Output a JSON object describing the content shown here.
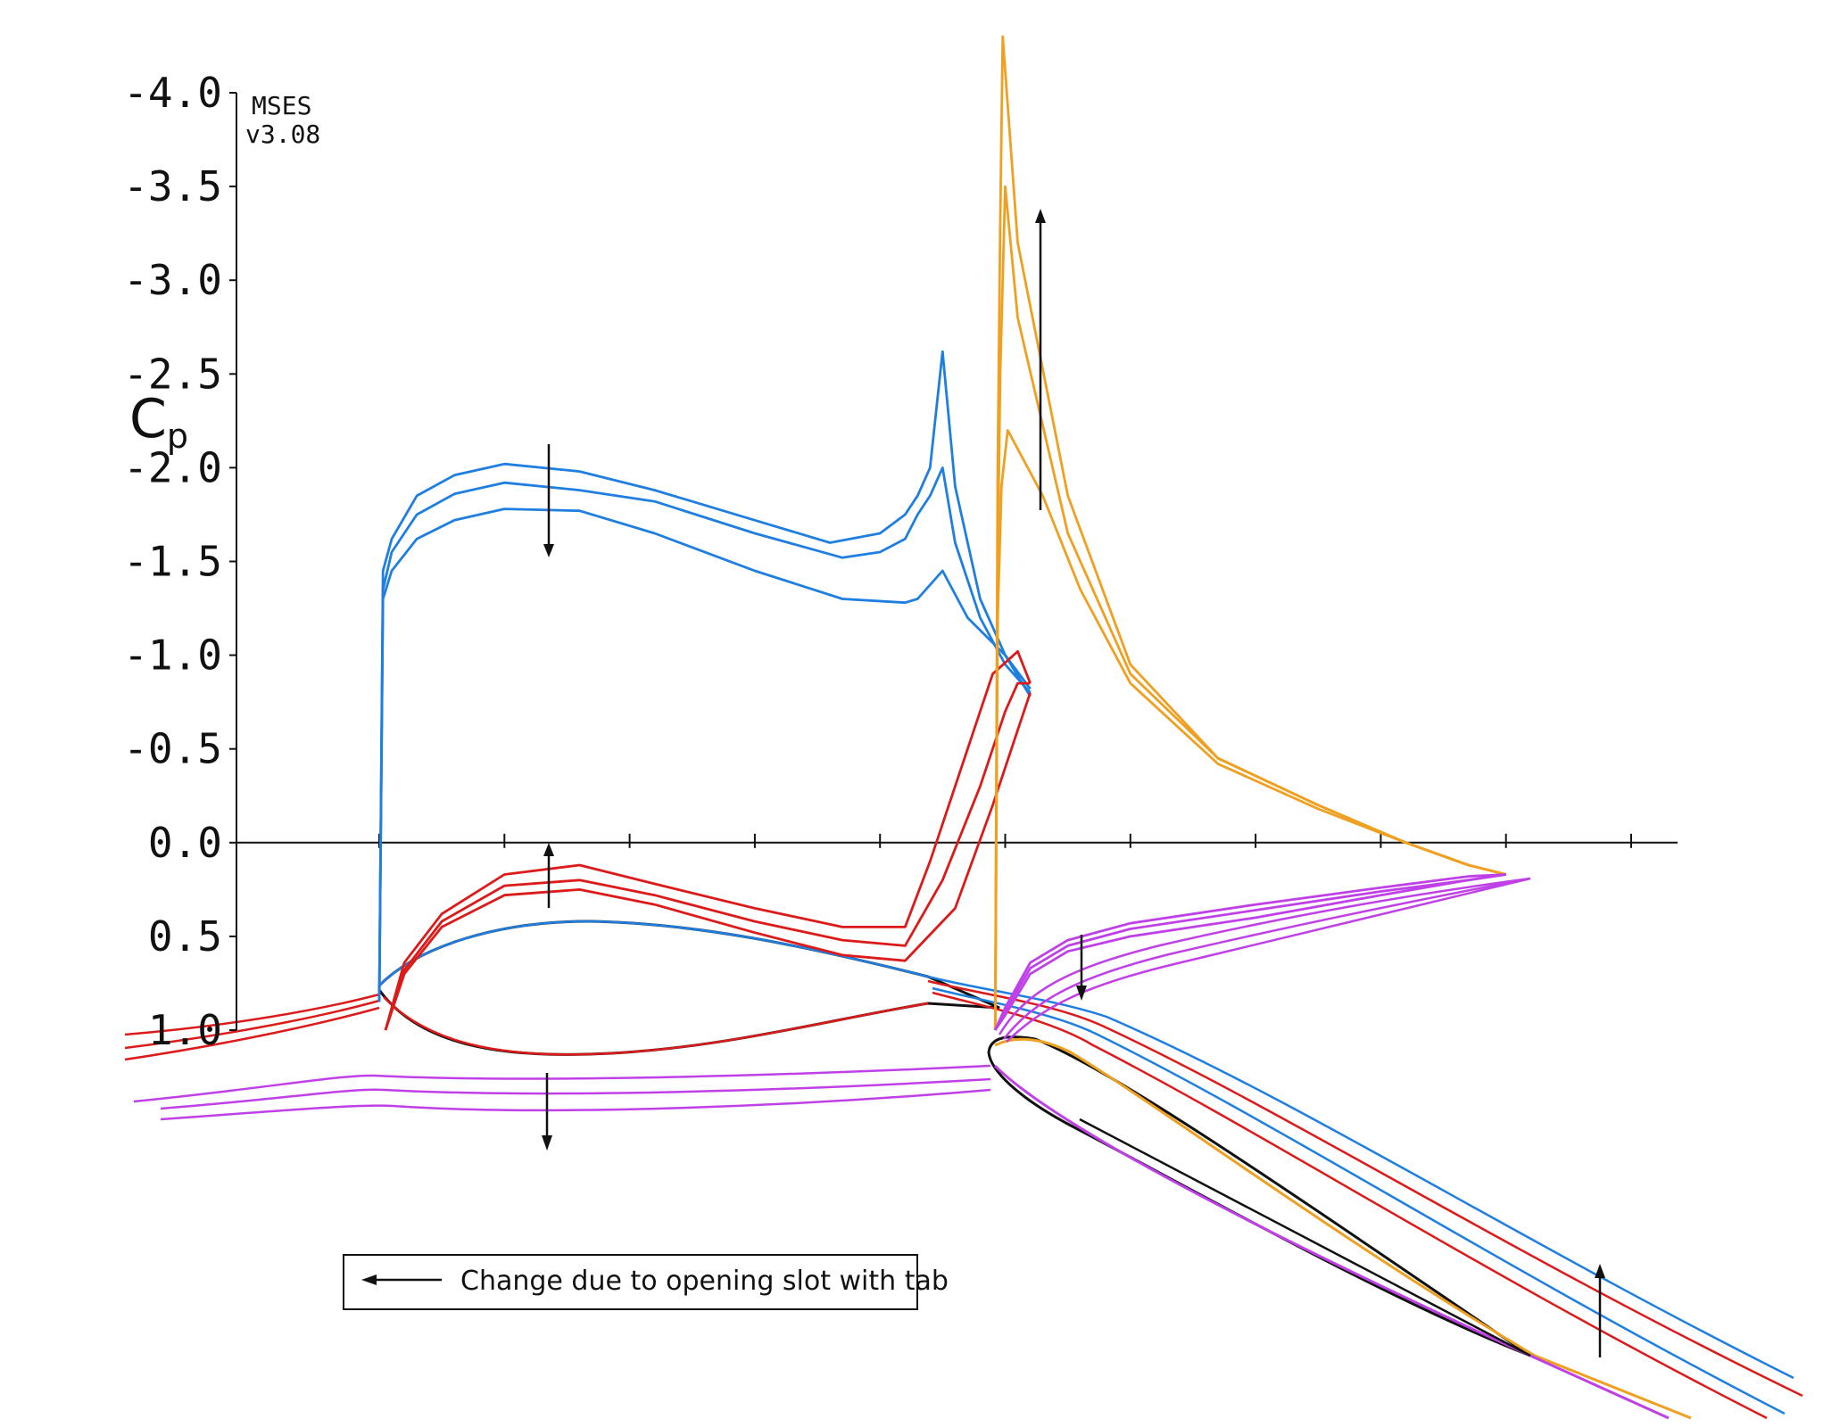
{
  "chart_data": {
    "type": "line",
    "title": "",
    "software": "MSES",
    "version": "v3.08",
    "ylabel": "C",
    "ylabel_sub": "p",
    "y_inverted": true,
    "ylim": [
      -4.0,
      1.0
    ],
    "yticks": [
      "-4.0",
      "-3.5",
      "-3.0",
      "-2.5",
      "-2.0",
      "-1.5",
      "-1.0",
      "-0.5",
      "0.0",
      "0.5",
      "1.0"
    ],
    "xlim": [
      0.0,
      1.0
    ],
    "x_tick_count": 10,
    "grid": false,
    "colors": {
      "main_upper": "#1f7fe0",
      "main_lower": "#dd1a1a",
      "flap_upper": "#f0a020",
      "flap_lower": "#c040e8",
      "airfoil": "#111111"
    },
    "series": [
      {
        "color": "main_upper",
        "x": [
          0.0,
          0.003,
          0.01,
          0.03,
          0.06,
          0.1,
          0.16,
          0.22,
          0.3,
          0.37,
          0.42,
          0.43,
          0.45,
          0.47,
          0.5,
          0.52
        ],
        "y": [
          0.85,
          -1.3,
          -1.45,
          -1.62,
          -1.72,
          -1.78,
          -1.77,
          -1.65,
          -1.45,
          -1.3,
          -1.28,
          -1.3,
          -1.45,
          -1.2,
          -1.0,
          -0.78
        ]
      },
      {
        "color": "main_upper",
        "x": [
          0.0,
          0.003,
          0.01,
          0.03,
          0.06,
          0.1,
          0.16,
          0.22,
          0.3,
          0.37,
          0.4,
          0.42,
          0.43,
          0.44,
          0.45,
          0.46,
          0.48,
          0.5,
          0.52
        ],
        "y": [
          0.85,
          -1.35,
          -1.55,
          -1.75,
          -1.86,
          -1.92,
          -1.88,
          -1.82,
          -1.65,
          -1.52,
          -1.55,
          -1.62,
          -1.75,
          -1.85,
          -2.0,
          -1.6,
          -1.2,
          -0.95,
          -0.8
        ]
      },
      {
        "color": "main_upper",
        "x": [
          0.0,
          0.003,
          0.01,
          0.03,
          0.06,
          0.1,
          0.16,
          0.22,
          0.3,
          0.36,
          0.4,
          0.42,
          0.43,
          0.44,
          0.45,
          0.46,
          0.48,
          0.5,
          0.52
        ],
        "y": [
          0.85,
          -1.45,
          -1.62,
          -1.85,
          -1.96,
          -2.02,
          -1.98,
          -1.88,
          -1.72,
          -1.6,
          -1.65,
          -1.75,
          -1.85,
          -2.0,
          -2.62,
          -1.9,
          -1.3,
          -1.0,
          -0.82
        ]
      },
      {
        "color": "main_lower",
        "x": [
          0.005,
          0.02,
          0.05,
          0.1,
          0.16,
          0.22,
          0.3,
          0.37,
          0.42,
          0.46,
          0.49,
          0.51,
          0.52
        ],
        "y": [
          1.0,
          0.7,
          0.45,
          0.28,
          0.25,
          0.33,
          0.48,
          0.6,
          0.63,
          0.35,
          -0.2,
          -0.6,
          -0.8
        ]
      },
      {
        "color": "main_lower",
        "x": [
          0.005,
          0.02,
          0.05,
          0.1,
          0.16,
          0.22,
          0.3,
          0.37,
          0.42,
          0.45,
          0.48,
          0.5,
          0.51,
          0.52
        ],
        "y": [
          1.0,
          0.68,
          0.42,
          0.23,
          0.2,
          0.28,
          0.42,
          0.52,
          0.55,
          0.2,
          -0.3,
          -0.7,
          -0.85,
          -0.85
        ]
      },
      {
        "color": "main_lower",
        "x": [
          0.005,
          0.02,
          0.05,
          0.1,
          0.16,
          0.22,
          0.3,
          0.37,
          0.42,
          0.44,
          0.47,
          0.49,
          0.51,
          0.52
        ],
        "y": [
          1.0,
          0.64,
          0.38,
          0.17,
          0.12,
          0.22,
          0.35,
          0.45,
          0.45,
          0.1,
          -0.5,
          -0.9,
          -1.02,
          -0.85
        ]
      },
      {
        "color": "flap_upper",
        "x": [
          0.492,
          0.494,
          0.496,
          0.5,
          0.51,
          0.55,
          0.6,
          0.67,
          0.75,
          0.82,
          0.87,
          0.9
        ],
        "y": [
          1.0,
          -1.5,
          -2.5,
          -3.5,
          -2.8,
          -1.65,
          -0.9,
          -0.45,
          -0.2,
          0.0,
          0.12,
          0.17
        ]
      },
      {
        "color": "flap_upper",
        "x": [
          0.492,
          0.494,
          0.497,
          0.502,
          0.51,
          0.53,
          0.56,
          0.6,
          0.67,
          0.75,
          0.82,
          0.87,
          0.9
        ],
        "y": [
          1.0,
          -1.2,
          -1.9,
          -2.2,
          -2.1,
          -1.85,
          -1.35,
          -0.85,
          -0.42,
          -0.18,
          0.0,
          0.12,
          0.17
        ]
      },
      {
        "color": "flap_upper",
        "x": [
          0.492,
          0.494,
          0.496,
          0.498,
          0.51,
          0.55,
          0.6,
          0.67,
          0.75,
          0.82,
          0.87,
          0.9
        ],
        "y": [
          1.0,
          -2.0,
          -3.3,
          -4.3,
          -3.2,
          -1.85,
          -0.95,
          -0.45,
          -0.2,
          0.0,
          0.12,
          0.17
        ]
      },
      {
        "color": "flap_lower",
        "x": [
          0.492,
          0.5,
          0.52,
          0.55,
          0.6,
          0.7,
          0.8,
          0.87,
          0.9
        ],
        "y": [
          1.0,
          0.92,
          0.7,
          0.58,
          0.5,
          0.4,
          0.28,
          0.2,
          0.17
        ]
      },
      {
        "color": "flap_lower",
        "x": [
          0.492,
          0.5,
          0.52,
          0.55,
          0.6,
          0.7,
          0.8,
          0.87,
          0.9
        ],
        "y": [
          1.0,
          0.9,
          0.67,
          0.55,
          0.46,
          0.36,
          0.26,
          0.2,
          0.17
        ]
      },
      {
        "color": "flap_lower",
        "x": [
          0.492,
          0.5,
          0.52,
          0.55,
          0.6,
          0.7,
          0.8,
          0.87,
          0.9
        ],
        "y": [
          1.0,
          0.88,
          0.64,
          0.52,
          0.43,
          0.33,
          0.24,
          0.18,
          0.17
        ]
      }
    ],
    "legend": {
      "text": "Change due to opening slot with tab",
      "position": "bottom-left"
    }
  }
}
